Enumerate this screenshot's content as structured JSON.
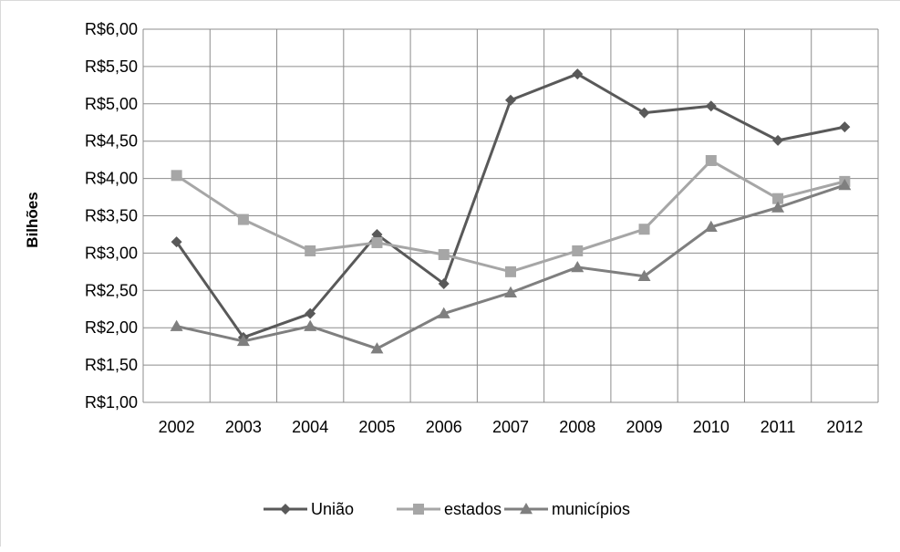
{
  "chart_data": {
    "type": "line",
    "title": "",
    "xlabel": "",
    "ylabel": "Bilhões",
    "ylim": [
      1.0,
      6.0
    ],
    "y_step": 0.5,
    "y_ticks": [
      "R$1,00",
      "R$1,50",
      "R$2,00",
      "R$2,50",
      "R$3,00",
      "R$3,50",
      "R$4,00",
      "R$4,50",
      "R$5,00",
      "R$5,50",
      "R$6,00"
    ],
    "categories": [
      "2002",
      "2003",
      "2004",
      "2005",
      "2006",
      "2007",
      "2008",
      "2009",
      "2010",
      "2011",
      "2012"
    ],
    "grid": true,
    "legend_position": "bottom",
    "series": [
      {
        "name": "União",
        "marker": "diamond",
        "color": "#595959",
        "values": [
          3.15,
          1.87,
          2.19,
          3.25,
          2.59,
          5.05,
          5.4,
          4.88,
          4.97,
          4.51,
          4.69
        ]
      },
      {
        "name": "estados",
        "marker": "square",
        "color": "#a6a6a6",
        "values": [
          4.04,
          3.45,
          3.03,
          3.14,
          2.98,
          2.75,
          3.03,
          3.32,
          4.24,
          3.73,
          3.96
        ]
      },
      {
        "name": "municípios",
        "marker": "triangle",
        "color": "#7f7f7f",
        "values": [
          2.02,
          1.82,
          2.02,
          1.72,
          2.19,
          2.47,
          2.81,
          2.69,
          3.35,
          3.61,
          3.91
        ]
      }
    ]
  }
}
